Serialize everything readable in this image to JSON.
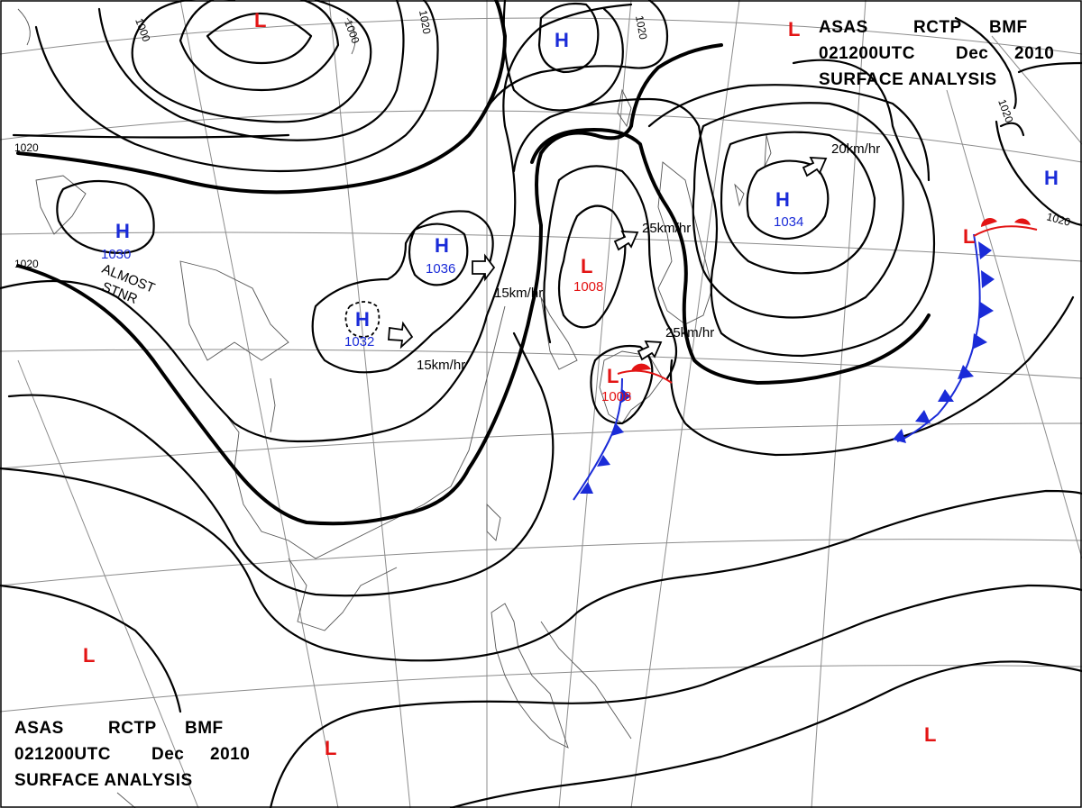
{
  "header_top": {
    "line1": [
      "ASAS",
      "RCTP",
      "BMF"
    ],
    "line2": [
      "021200UTC",
      "Dec",
      "2010"
    ],
    "line3": "SURFACE  ANALYSIS"
  },
  "header_bottom": {
    "line1": [
      "ASAS",
      "RCTP",
      "BMF"
    ],
    "line2": [
      "021200UTC",
      "Dec",
      "2010"
    ],
    "line3": "SURFACE  ANALYSIS"
  },
  "colors": {
    "high": "#1a2bd8",
    "low": "#e31414",
    "isobar": "#000000",
    "grid": "#8c8c8c"
  },
  "pressure_systems": {
    "high_1030": {
      "symbol": "H",
      "value": "1030"
    },
    "high_1036": {
      "symbol": "H",
      "value": "1036"
    },
    "high_1032": {
      "symbol": "H",
      "value": "1032"
    },
    "high_1034": {
      "symbol": "H",
      "value": "1034"
    },
    "high_north": {
      "symbol": "H"
    },
    "high_east": {
      "symbol": "H"
    },
    "low_1008_north": {
      "symbol": "L",
      "value": "1008"
    },
    "low_1008_south": {
      "symbol": "L",
      "value": "1008"
    },
    "low_top": {
      "symbol": "L"
    },
    "low_top_right": {
      "symbol": "L"
    },
    "low_east_front": {
      "symbol": "L"
    },
    "low_west": {
      "symbol": "L"
    },
    "low_south": {
      "symbol": "L"
    },
    "low_southeast": {
      "symbol": "L"
    }
  },
  "movement": {
    "m1036": "15km/hr",
    "m1032": "15km/hr",
    "m1008n": "25km/hr",
    "m1008s": "25km/hr",
    "m1034": "20km/hr"
  },
  "annotations": {
    "almost_stnr_1": "ALMOST",
    "almost_stnr_2": "STNR"
  },
  "isobar_labels": {
    "a": "1000",
    "b": "1000",
    "c": "1020",
    "d": "1020",
    "e": "1020",
    "f": "1020",
    "g": "1020",
    "h": "1020"
  }
}
